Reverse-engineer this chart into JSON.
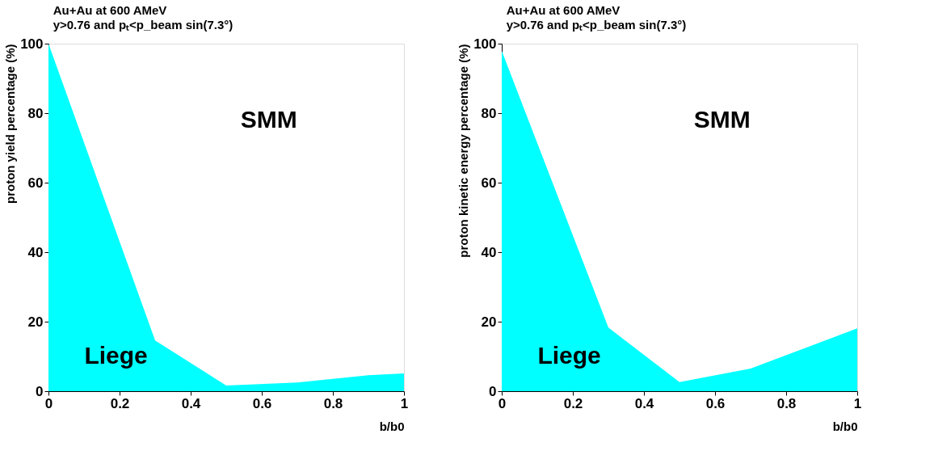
{
  "chart_data": [
    {
      "type": "area",
      "title": "Au+Au at 600 AMeV",
      "subtitle": "y>0.76 and pₜ<p_beam sin(7.3°)",
      "xlabel": "b/b0",
      "ylabel": "proton yield percentage (%)",
      "x": [
        0,
        0.3,
        0.5,
        0.7,
        0.9,
        1
      ],
      "series": [
        {
          "color": "#00ffff",
          "values": [
            100,
            14.6,
            1.6,
            2.5,
            4.6,
            5.1
          ]
        }
      ],
      "xlim": [
        0,
        1
      ],
      "xticks": [
        0,
        0.2,
        0.4,
        0.6,
        0.8,
        1
      ],
      "ylim": [
        0,
        100
      ],
      "yticks": [
        0,
        20,
        40,
        60,
        80,
        100
      ],
      "annotations": [
        "SMM",
        "Liege"
      ],
      "grid": false
    },
    {
      "type": "area",
      "title": "Au+Au at 600 AMeV",
      "subtitle": "y>0.76 and pₜ<p_beam sin(7.3°)",
      "xlabel": "b/b0",
      "ylabel": "proton kinetic energy percentage (%)",
      "x": [
        0,
        0.3,
        0.5,
        0.7,
        1
      ],
      "series": [
        {
          "color": "#00ffff",
          "values": [
            97.9,
            18.3,
            2.6,
            6.5,
            18.1
          ]
        }
      ],
      "xlim": [
        0,
        1
      ],
      "xticks": [
        0,
        0.2,
        0.4,
        0.6,
        0.8,
        1
      ],
      "ylim": [
        0,
        100
      ],
      "yticks": [
        0,
        20,
        40,
        60,
        80,
        100
      ],
      "annotations": [
        "SMM",
        "Liege"
      ],
      "grid": false
    }
  ]
}
